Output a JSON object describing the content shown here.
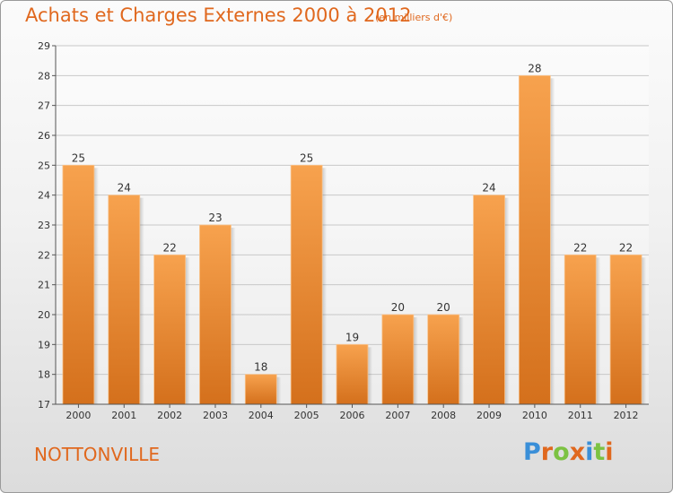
{
  "chart_data": {
    "type": "bar",
    "title": "Achats et Charges Externes 2000 à 2012",
    "subtitle": "(en milliers d'€)",
    "categories": [
      "2000",
      "2001",
      "2002",
      "2003",
      "2004",
      "2005",
      "2006",
      "2007",
      "2008",
      "2009",
      "2010",
      "2011",
      "2012"
    ],
    "values": [
      25,
      24,
      22,
      23,
      18,
      25,
      19,
      20,
      20,
      24,
      28,
      22,
      22
    ],
    "ylim": [
      17,
      29
    ],
    "yticks": [
      17,
      18,
      19,
      20,
      21,
      22,
      23,
      24,
      25,
      26,
      27,
      28,
      29
    ],
    "grid": true,
    "bar_color_top": "#f7a24e",
    "bar_color_bottom": "#d4701c"
  },
  "footer": {
    "place": "NOTTONVILLE",
    "brand": "Proxiti",
    "brand_colors": [
      "#3a8fd8",
      "#e0681e",
      "#7cc242",
      "#e0681e",
      "#3a8fd8",
      "#7cc242",
      "#e0681e"
    ]
  }
}
